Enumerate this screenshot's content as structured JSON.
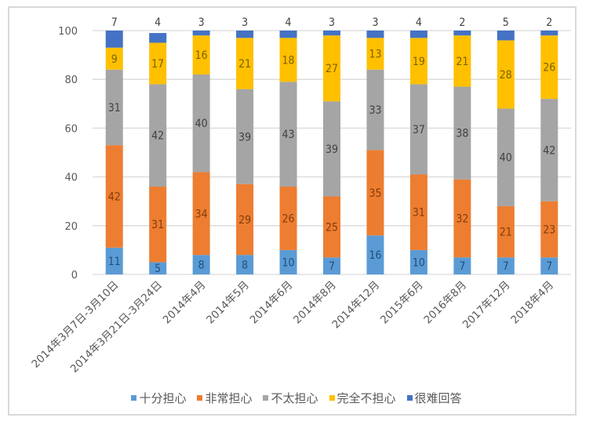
{
  "chart_data": {
    "type": "bar",
    "stacked": true,
    "title": "",
    "xlabel": "",
    "ylabel": "",
    "ylim": [
      0,
      100
    ],
    "yticks": [
      0,
      20,
      40,
      60,
      80,
      100
    ],
    "grid": true,
    "legend_position": "bottom",
    "categories": [
      "2014年3月7日-3月10日",
      "2014年3月21日-3月24日",
      "2014年4月",
      "2014年5月",
      "2014年6月",
      "2014年8月",
      "2014年12月",
      "2015年6月",
      "2016年8月",
      "2017年12月",
      "2018年4月"
    ],
    "series": [
      {
        "name": "十分担心",
        "color": "#5b9bd5",
        "label_color": "#1f4e79",
        "values": [
          11,
          5,
          8,
          8,
          10,
          7,
          16,
          10,
          7,
          7,
          7
        ]
      },
      {
        "name": "非常担心",
        "color": "#ed7d31",
        "label_color": "#843c0c",
        "values": [
          42,
          31,
          34,
          29,
          26,
          25,
          35,
          31,
          32,
          21,
          23
        ]
      },
      {
        "name": "不太担心",
        "color": "#a5a5a5",
        "label_color": "#404040",
        "values": [
          31,
          42,
          40,
          39,
          43,
          39,
          33,
          37,
          38,
          40,
          42
        ]
      },
      {
        "name": "完全不担心",
        "color": "#ffc000",
        "label_color": "#7f6000",
        "values": [
          9,
          17,
          16,
          21,
          18,
          27,
          13,
          19,
          21,
          28,
          26
        ]
      },
      {
        "name": "很难回答",
        "color": "#4472c4",
        "label_color": "#404040",
        "values": [
          7,
          4,
          3,
          3,
          4,
          3,
          3,
          4,
          2,
          5,
          2
        ],
        "label_position": "above"
      }
    ]
  }
}
